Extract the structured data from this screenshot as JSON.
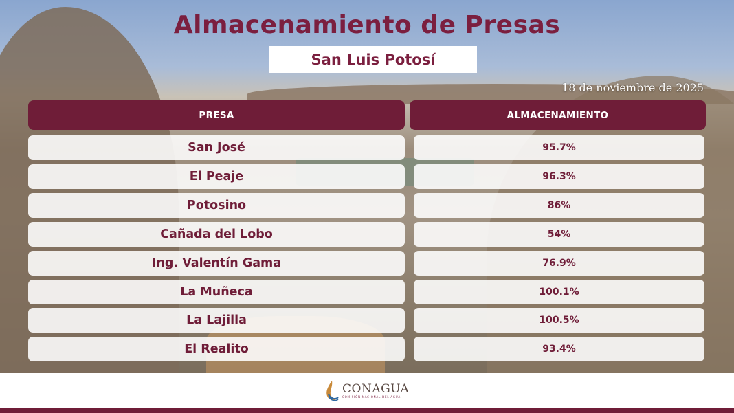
{
  "title": "Almacenamiento de Presas",
  "subtitle": "San Luis Potosí",
  "date": "18 de noviembre de 2025",
  "table": {
    "headers": [
      "PRESA",
      "ALMACENAMIENTO"
    ],
    "rows": [
      {
        "presa": "San José",
        "almacenamiento": "95.7%"
      },
      {
        "presa": "El Peaje",
        "almacenamiento": "96.3%"
      },
      {
        "presa": "Potosino",
        "almacenamiento": "86%"
      },
      {
        "presa": "Cañada del Lobo",
        "almacenamiento": "54%"
      },
      {
        "presa": "Ing. Valentín Gama",
        "almacenamiento": "76.9%"
      },
      {
        "presa": "La Muñeca",
        "almacenamiento": "100.1%"
      },
      {
        "presa": "La Lajilla",
        "almacenamiento": "100.5%"
      },
      {
        "presa": "El Realito",
        "almacenamiento": "93.4%"
      }
    ]
  },
  "footer": {
    "logo_name": "CONAGUA",
    "logo_sub": "COMISIÓN NACIONAL DEL AGUA",
    "logo_icon": "conagua-logo-icon"
  },
  "colors": {
    "accent": "#6f1d38",
    "title": "#7b1f3f"
  }
}
